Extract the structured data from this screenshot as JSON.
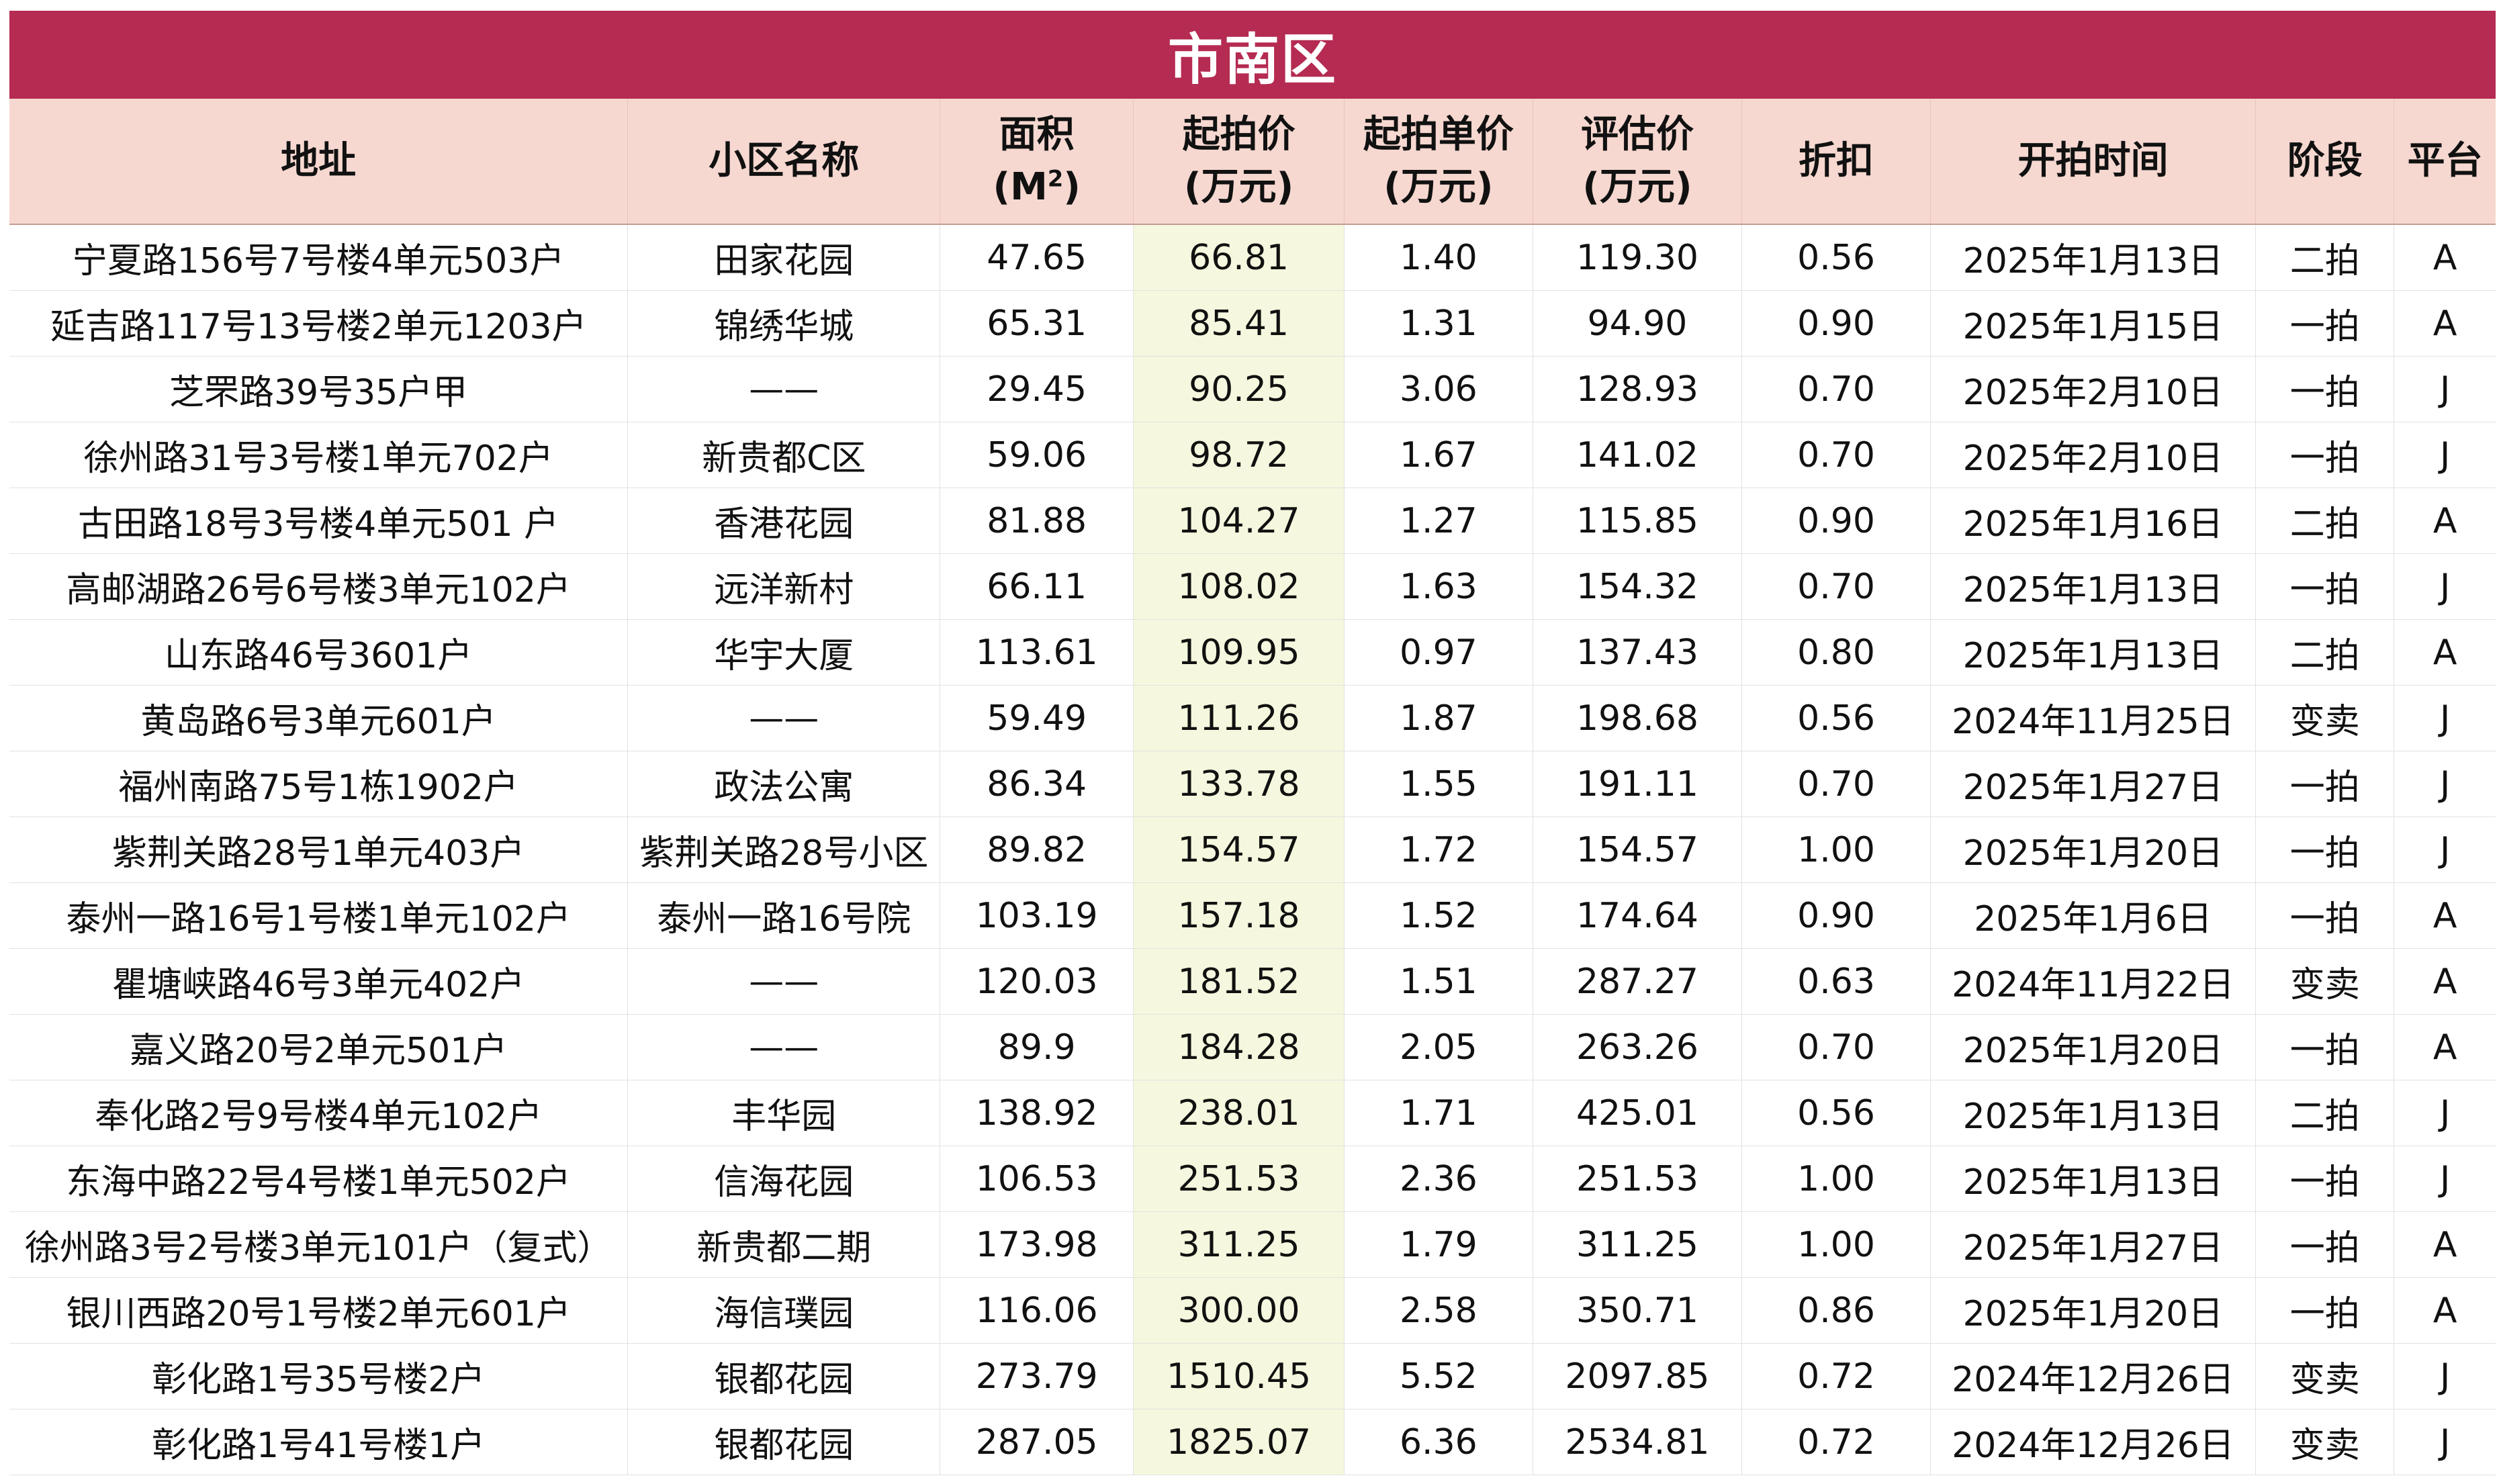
{
  "title": "市南区",
  "columns": [
    {
      "key": "address",
      "line1": "地址",
      "line2": ""
    },
    {
      "key": "community",
      "line1": "小区名称",
      "line2": ""
    },
    {
      "key": "area",
      "line1": "面积",
      "line2": "(M",
      "sup": "2",
      "line2_end": ")"
    },
    {
      "key": "start_price",
      "line1": "起拍价",
      "line2": "(万元)"
    },
    {
      "key": "unit_price",
      "line1": "起拍单价",
      "line2": "(万元)"
    },
    {
      "key": "appraisal",
      "line1": "评估价",
      "line2": "(万元)"
    },
    {
      "key": "discount",
      "line1": "折扣",
      "line2": ""
    },
    {
      "key": "date",
      "line1": "开拍时间",
      "line2": ""
    },
    {
      "key": "stage",
      "line1": "阶段",
      "line2": ""
    },
    {
      "key": "platform",
      "line1": "平台",
      "line2": ""
    }
  ],
  "highlight_color": "#f5f8de",
  "header_color": "#f6d8d0",
  "title_color": "#b52b52",
  "rows": [
    [
      "宁夏路156号7号楼4单元503户",
      "田家花园",
      "47.65",
      "66.81",
      "1.40",
      "119.30",
      "0.56",
      "2025年1月13日",
      "二拍",
      "A"
    ],
    [
      "延吉路117号13号楼2单元1203户",
      "锦绣华城",
      "65.31",
      "85.41",
      "1.31",
      "94.90",
      "0.90",
      "2025年1月15日",
      "一拍",
      "A"
    ],
    [
      "芝罘路39号35户甲",
      "——",
      "29.45",
      "90.25",
      "3.06",
      "128.93",
      "0.70",
      "2025年2月10日",
      "一拍",
      "J"
    ],
    [
      "徐州路31号3号楼1单元702户",
      "新贵都C区",
      "59.06",
      "98.72",
      "1.67",
      "141.02",
      "0.70",
      "2025年2月10日",
      "一拍",
      "J"
    ],
    [
      "古田路18号3号楼4单元501 户",
      "香港花园",
      "81.88",
      "104.27",
      "1.27",
      "115.85",
      "0.90",
      "2025年1月16日",
      "二拍",
      "A"
    ],
    [
      "高邮湖路26号6号楼3单元102户",
      "远洋新村",
      "66.11",
      "108.02",
      "1.63",
      "154.32",
      "0.70",
      "2025年1月13日",
      "一拍",
      "J"
    ],
    [
      "山东路46号3601户",
      "华宇大厦",
      "113.61",
      "109.95",
      "0.97",
      "137.43",
      "0.80",
      "2025年1月13日",
      "二拍",
      "A"
    ],
    [
      "黄岛路6号3单元601户",
      "——",
      "59.49",
      "111.26",
      "1.87",
      "198.68",
      "0.56",
      "2024年11月25日",
      "变卖",
      "J"
    ],
    [
      "福州南路75号1栋1902户",
      "政法公寓",
      "86.34",
      "133.78",
      "1.55",
      "191.11",
      "0.70",
      "2025年1月27日",
      "一拍",
      "J"
    ],
    [
      "紫荆关路28号1单元403户",
      "紫荆关路28号小区",
      "89.82",
      "154.57",
      "1.72",
      "154.57",
      "1.00",
      "2025年1月20日",
      "一拍",
      "J"
    ],
    [
      "泰州一路16号1号楼1单元102户",
      "泰州一路16号院",
      "103.19",
      "157.18",
      "1.52",
      "174.64",
      "0.90",
      "2025年1月6日",
      "一拍",
      "A"
    ],
    [
      "瞿塘峡路46号3单元402户",
      "——",
      "120.03",
      "181.52",
      "1.51",
      "287.27",
      "0.63",
      "2024年11月22日",
      "变卖",
      "A"
    ],
    [
      "嘉义路20号2单元501户",
      "——",
      "89.9",
      "184.28",
      "2.05",
      "263.26",
      "0.70",
      "2025年1月20日",
      "一拍",
      "A"
    ],
    [
      "奉化路2号9号楼4单元102户",
      "丰华园",
      "138.92",
      "238.01",
      "1.71",
      "425.01",
      "0.56",
      "2025年1月13日",
      "二拍",
      "J"
    ],
    [
      "东海中路22号4号楼1单元502户",
      "信海花园",
      "106.53",
      "251.53",
      "2.36",
      "251.53",
      "1.00",
      "2025年1月13日",
      "一拍",
      "J"
    ],
    [
      "徐州路3号2号楼3单元101户（复式）",
      "新贵都二期",
      "173.98",
      "311.25",
      "1.79",
      "311.25",
      "1.00",
      "2025年1月27日",
      "一拍",
      "A"
    ],
    [
      "银川西路20号1号楼2单元601户",
      "海信璞园",
      "116.06",
      "300.00",
      "2.58",
      "350.71",
      "0.86",
      "2025年1月20日",
      "一拍",
      "A"
    ],
    [
      "彰化路1号35号楼2户",
      "银都花园",
      "273.79",
      "1510.45",
      "5.52",
      "2097.85",
      "0.72",
      "2024年12月26日",
      "变卖",
      "J"
    ],
    [
      "彰化路1号41号楼1户",
      "银都花园",
      "287.05",
      "1825.07",
      "6.36",
      "2534.81",
      "0.72",
      "2024年12月26日",
      "变卖",
      "J"
    ]
  ]
}
